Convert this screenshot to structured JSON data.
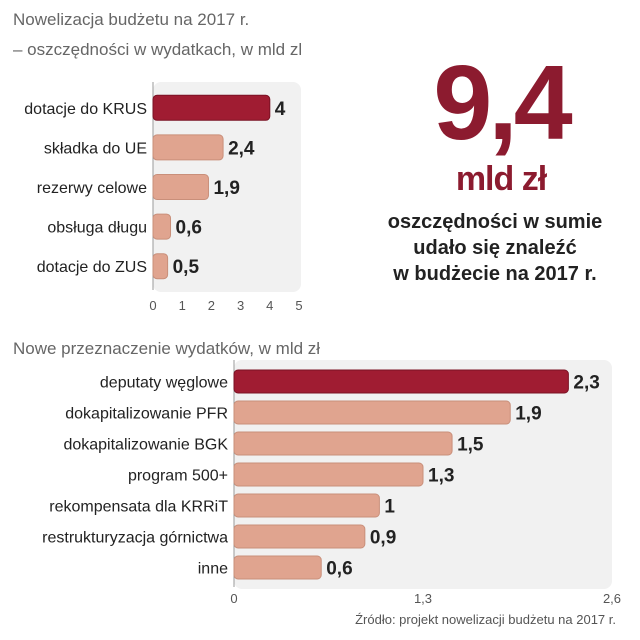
{
  "chart_data": [
    {
      "type": "bar",
      "orientation": "horizontal",
      "title_line1": "Nowelizacja budżetu na 2017 r.",
      "title_line2": "– oszczędności w wydatkach, w mld zl",
      "categories": [
        "dotacje do KRUS",
        "składka do UE",
        "rezerwy celowe",
        "obsługa długu",
        "dotacje do ZUS"
      ],
      "values": [
        4,
        2.4,
        1.9,
        0.6,
        0.5
      ],
      "value_labels": [
        "4",
        "2,4",
        "1,9",
        "0,6",
        "0,5"
      ],
      "ticks": [
        "0",
        "1",
        "2",
        "3",
        "4",
        "5"
      ],
      "xlim": [
        0,
        5
      ],
      "highlight_color": "#a01c32",
      "bar_color": "#e0a48f"
    },
    {
      "type": "bar",
      "orientation": "horizontal",
      "title": "Nowe przeznaczenie wydatków, w mld zł",
      "categories": [
        "deputaty węglowe",
        "dokapitalizowanie PFR",
        "dokapitalizowanie BGK",
        "program 500+",
        "rekompensata dla KRRiT",
        "restrukturyzacja górnictwa",
        "inne"
      ],
      "values": [
        2.3,
        1.9,
        1.5,
        1.3,
        1,
        0.9,
        0.6
      ],
      "value_labels": [
        "2,3",
        "1,9",
        "1,5",
        "1,3",
        "1",
        "0,9",
        "0,6"
      ],
      "ticks": [
        "0",
        "1,3",
        "2,6"
      ],
      "xlim": [
        0,
        2.6
      ],
      "highlight_color": "#a01c32",
      "bar_color": "#e0a48f"
    }
  ],
  "summary": {
    "big_number": "9,4",
    "unit": "mld zł",
    "line1": "oszczędności w sumie",
    "line2": "udało się znaleźć",
    "line3": "w budżecie na 2017 r."
  },
  "source": "Źródło: projekt nowelizacji budżetu na 2017 r."
}
